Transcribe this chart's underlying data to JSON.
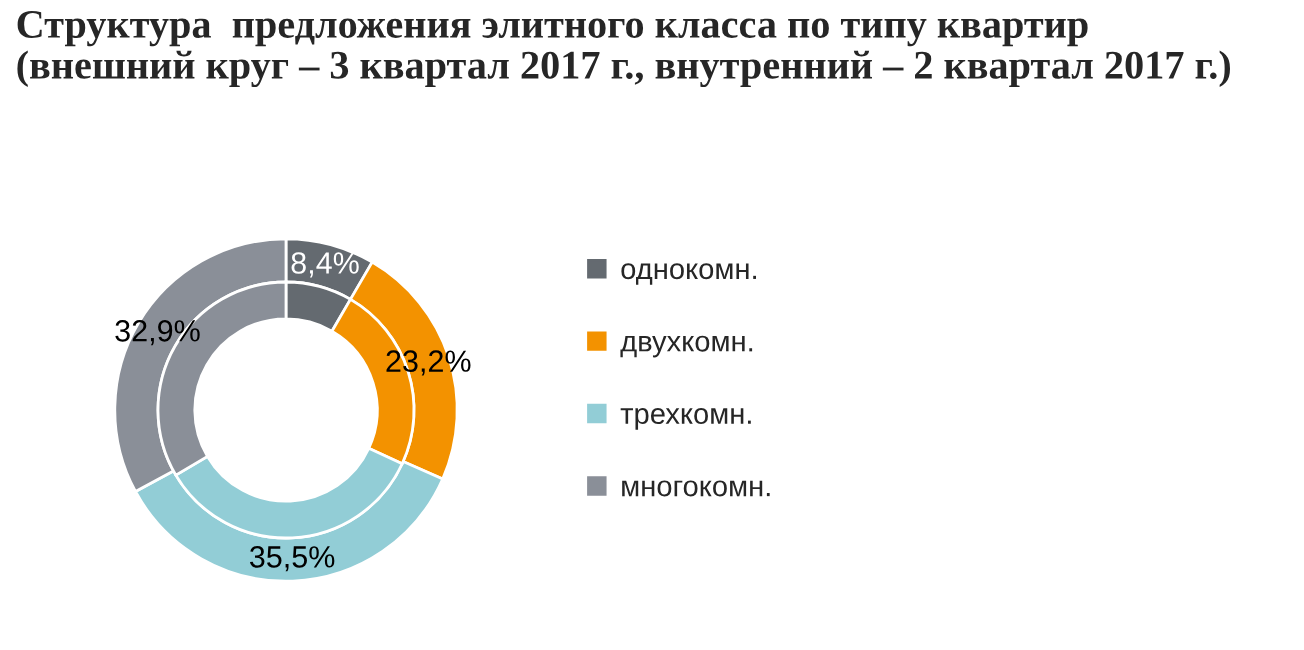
{
  "chart_data": {
    "type": "donut",
    "title": "Структура  предложения элитного класса по типу квартир\n(внешний круг – 3 квартал 2017 г., внутренний – 2 квартал 2017 г.)",
    "categories": [
      "однокомн.",
      "двухкомн.",
      "трехкомн.",
      "многокомн."
    ],
    "colors": [
      "#646a70",
      "#f39200",
      "#92cdd6",
      "#8a8f98"
    ],
    "series": [
      {
        "values": [
          8.4,
          23.2,
          35.5,
          32.9
        ],
        "value_labels": [
          "8,4%",
          "23,2%",
          "35,5%",
          "32,9%"
        ]
      },
      {
        "values": [
          8.4,
          23.5,
          34.6,
          33.5
        ]
      }
    ],
    "legend": "right",
    "marker": "square"
  }
}
